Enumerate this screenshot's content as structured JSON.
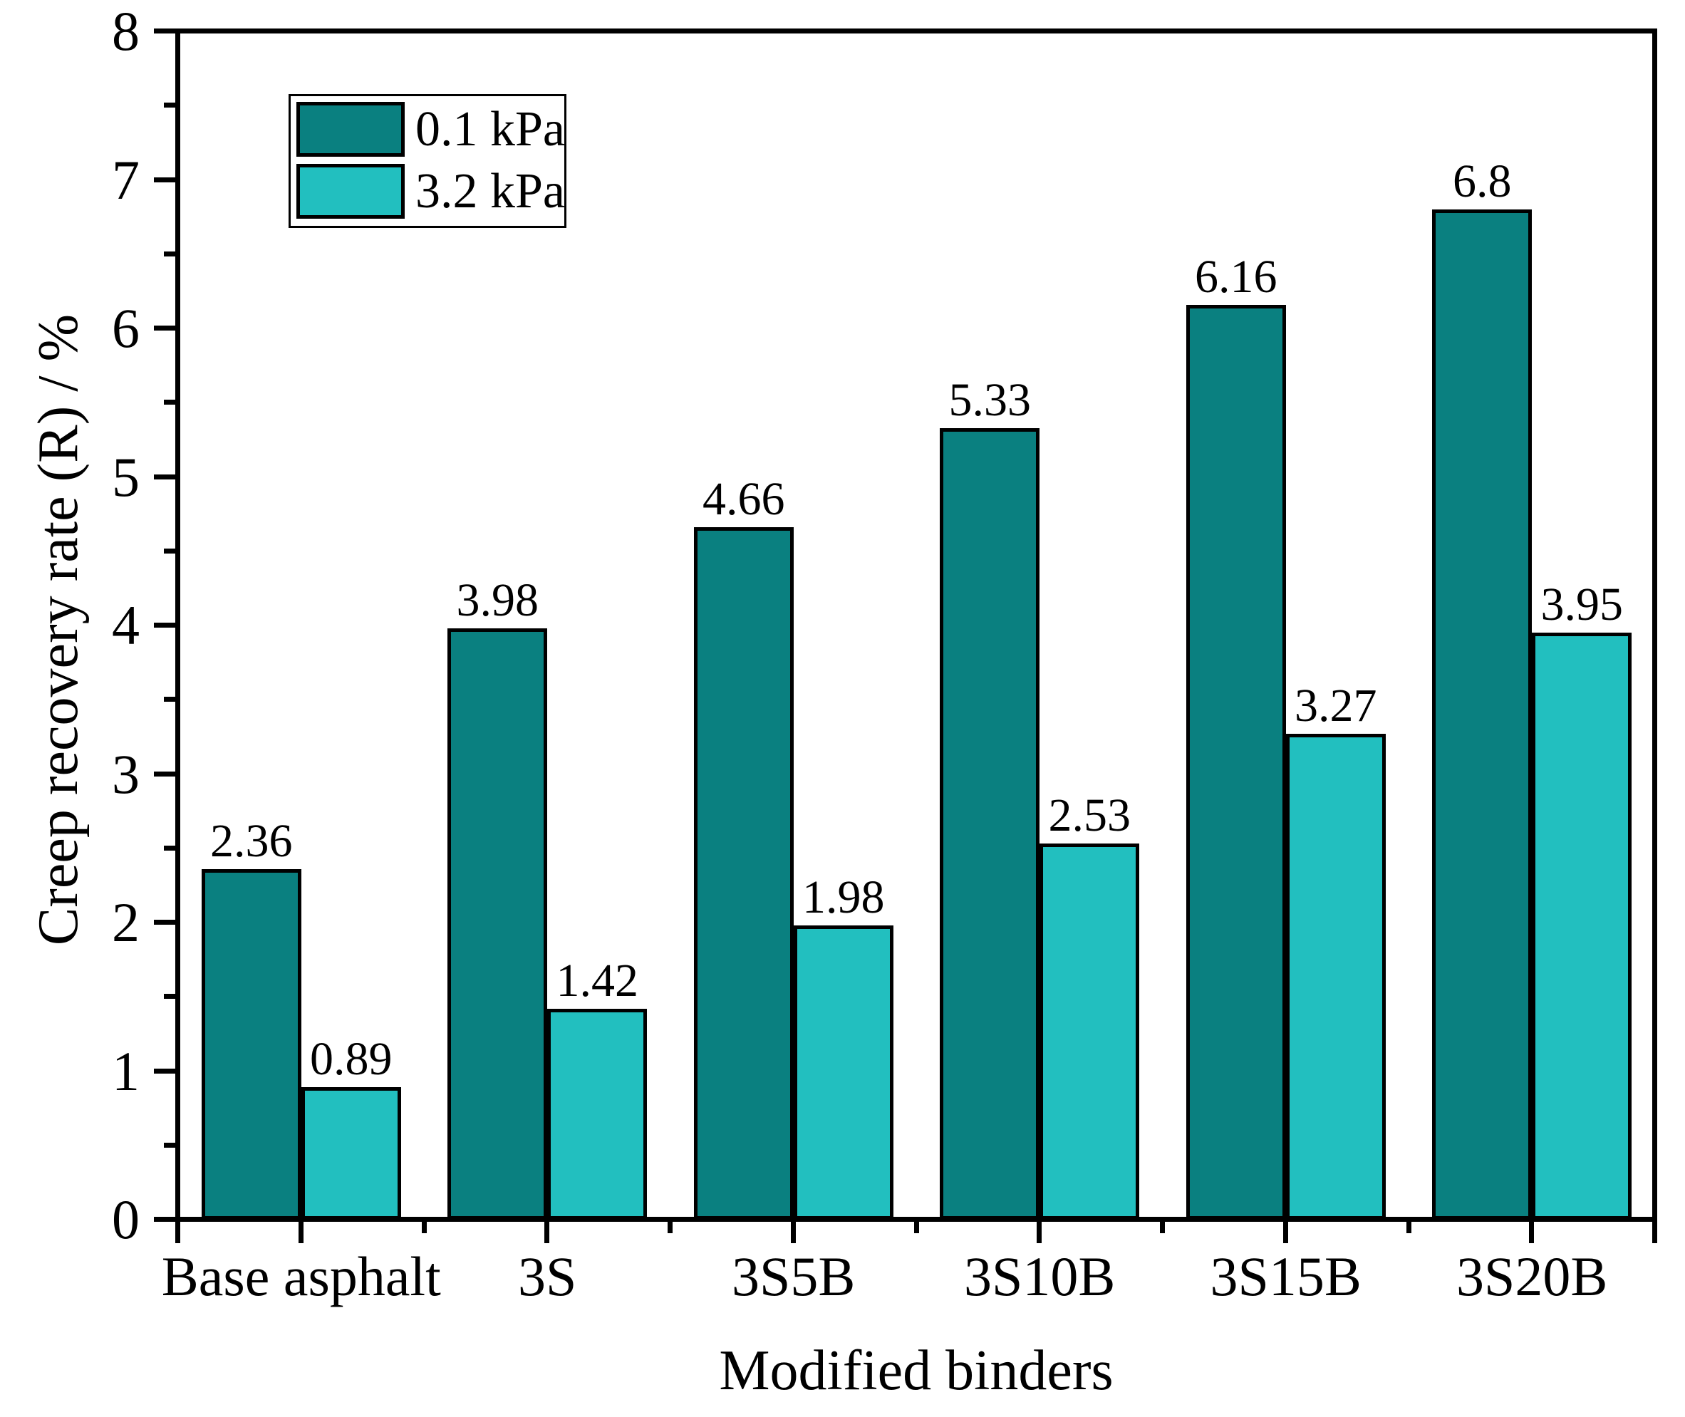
{
  "chart_data": {
    "type": "bar",
    "title": "",
    "xlabel": "Modified binders",
    "ylabel": "Creep recovery rate (R) / %",
    "categories": [
      "Base asphalt",
      "3S",
      "3S5B",
      "3S10B",
      "3S15B",
      "3S20B"
    ],
    "series": [
      {
        "name": "0.1 kPa",
        "color": "#0A8080",
        "values": [
          2.36,
          3.98,
          4.66,
          5.33,
          6.16,
          6.8
        ]
      },
      {
        "name": "3.2 kPa",
        "color": "#22BFBF",
        "values": [
          0.89,
          1.42,
          1.98,
          2.53,
          3.27,
          3.95
        ]
      }
    ],
    "value_labels": [
      [
        "2.36",
        "3.98",
        "4.66",
        "5.33",
        "6.16",
        "6.8"
      ],
      [
        "0.89",
        "1.42",
        "1.98",
        "2.53",
        "3.27",
        "3.95"
      ]
    ],
    "ylim": [
      0,
      8
    ],
    "yticks": [
      "0",
      "1",
      "2",
      "3",
      "4",
      "5",
      "6",
      "7",
      "8"
    ],
    "y_minor_step": 0.5,
    "grid": false,
    "legend": {
      "position": "top-left",
      "entries": [
        {
          "label": "0.1 kPa",
          "color": "#0A8080"
        },
        {
          "label": "3.2 kPa",
          "color": "#22BFBF"
        }
      ]
    },
    "bar_outline_color": "#000000",
    "background_color": "#ffffff"
  }
}
